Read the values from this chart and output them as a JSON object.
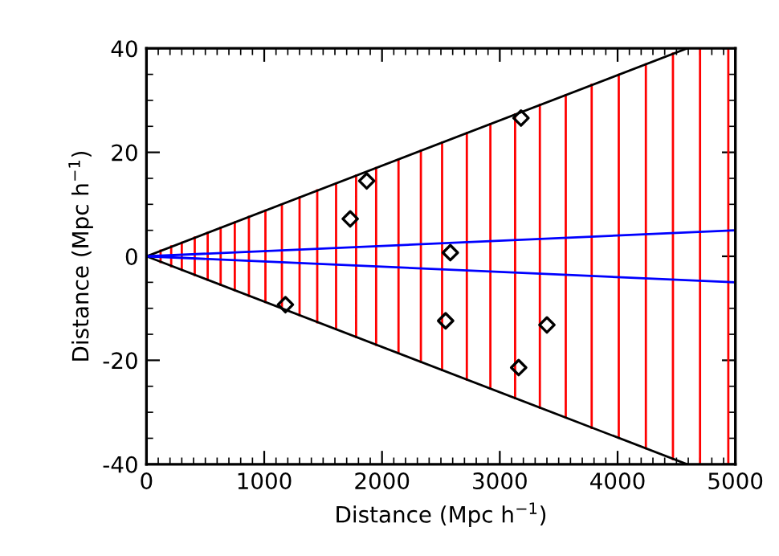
{
  "chart_data": {
    "type": "line",
    "xlabel": "Distance (Mpc h$^{−1}$)",
    "ylabel": "Distance (Mpc h$^{−1}$)",
    "xlim": [
      0,
      5000
    ],
    "ylim": [
      -40,
      40
    ],
    "xticks": [
      0,
      1000,
      2000,
      3000,
      4000,
      5000
    ],
    "yticks": [
      -40,
      -20,
      0,
      20,
      40
    ],
    "grid": false,
    "marker": "none",
    "line_style": "solid",
    "series": [
      {
        "color": "#ff0000",
        "x": [
          120,
          120,
          null,
          210,
          210,
          null,
          300,
          300,
          null,
          410,
          410,
          null,
          520,
          520,
          null,
          630,
          630,
          null,
          750,
          750,
          null,
          870,
          870,
          null,
          1010,
          1010,
          null,
          1150,
          1150,
          null,
          1300,
          1300,
          null,
          1450,
          1450,
          null,
          1610,
          1610,
          null,
          1780,
          1780,
          null,
          1950,
          1950,
          null,
          2140,
          2140,
          null,
          2330,
          2330,
          null,
          2510,
          2510,
          null,
          2720,
          2720,
          null,
          2920,
          2920,
          null,
          3130,
          3130,
          null,
          3340,
          3340,
          null,
          3560,
          3560,
          null,
          3780,
          3780,
          null,
          4010,
          4010,
          null,
          4240,
          4240,
          null,
          4470,
          4470,
          null,
          4700,
          4700,
          null,
          4940,
          4940
        ],
        "values": [
          -1.1,
          1.1,
          null,
          -1.9,
          1.9,
          null,
          -2.6,
          2.6,
          null,
          -3.6,
          3.6,
          null,
          -4.5,
          4.5,
          null,
          -5.5,
          5.5,
          null,
          -6.5,
          6.5,
          null,
          -7.6,
          7.6,
          null,
          -8.8,
          8.8,
          null,
          -10.0,
          10.0,
          null,
          -11.3,
          11.3,
          null,
          -12.7,
          12.7,
          null,
          -14.0,
          14.0,
          null,
          -15.5,
          15.5,
          null,
          -17.0,
          17.0,
          null,
          -18.6,
          18.6,
          null,
          -20.3,
          20.3,
          null,
          -21.9,
          21.9,
          null,
          -23.7,
          23.7,
          null,
          -25.4,
          25.4,
          null,
          -27.3,
          27.3,
          null,
          -29.1,
          29.1,
          null,
          -31.0,
          31.0,
          null,
          -33.0,
          33.0,
          null,
          -34.9,
          34.9,
          null,
          -36.9,
          36.9,
          null,
          -39.0,
          39.0,
          null,
          -40,
          40,
          null,
          -40,
          40
        ]
      },
      {
        "color": "#000000",
        "x": [
          0,
          4590
        ],
        "values": [
          0,
          40
        ]
      },
      {
        "color": "#000000",
        "x": [
          0,
          4590
        ],
        "values": [
          0,
          -40
        ]
      },
      {
        "color": "#0000ff",
        "x": [
          0,
          5000
        ],
        "values": [
          0,
          5
        ]
      },
      {
        "color": "#0000ff",
        "x": [
          0,
          5000
        ],
        "values": [
          0,
          -5
        ]
      },
      {
        "type": "scatter",
        "color": "#000000",
        "marker": "diamond",
        "x": [
          1180,
          1730,
          1870,
          2580,
          2540,
          3180,
          3400,
          3160
        ],
        "values": [
          -9.3,
          7.2,
          14.5,
          0.7,
          -12.4,
          26.6,
          -13.2,
          -21.4
        ]
      }
    ]
  }
}
